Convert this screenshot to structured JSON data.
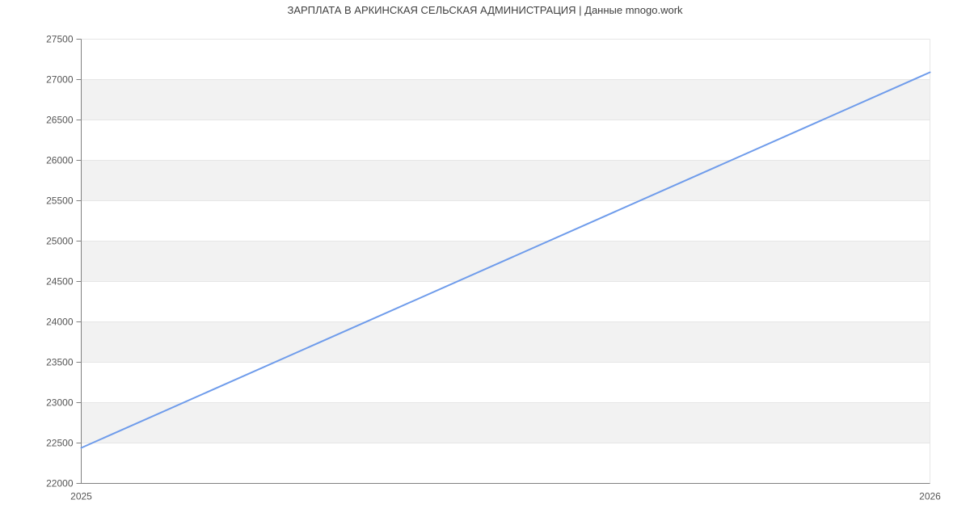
{
  "chart_data": {
    "type": "line",
    "title": "ЗАРПЛАТА В АРКИНСКАЯ СЕЛЬСКАЯ АДМИНИСТРАЦИЯ | Данные mnogo.work",
    "x": [
      2025,
      2026
    ],
    "xtick_labels": [
      "2025",
      "2026"
    ],
    "series": [
      {
        "values": [
          22440,
          27090
        ]
      }
    ],
    "xlim": [
      2025,
      2026
    ],
    "ylim": [
      22000,
      27500
    ],
    "yticks": [
      22000,
      22500,
      23000,
      23500,
      24000,
      24500,
      25000,
      25500,
      26000,
      26500,
      27000,
      27500
    ],
    "grid": true,
    "alternating_bands": true,
    "legend_position": "none",
    "colors": {
      "line": "#6f9ceb",
      "band": "#f2f2f2",
      "gridline": "#e6e6e6",
      "axis": "#808080",
      "tick_label": "#555555",
      "title": "#3f3f3f",
      "background": "#ffffff"
    }
  }
}
